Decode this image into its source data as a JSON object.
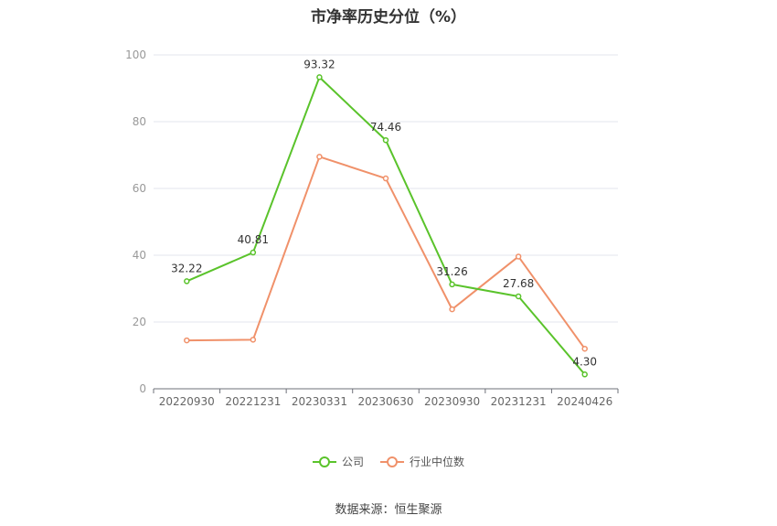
{
  "chart_data": {
    "type": "line",
    "title": "市净率历史分位（%）",
    "categories": [
      "20220930",
      "20221231",
      "20230331",
      "20230630",
      "20230930",
      "20231231",
      "20240426"
    ],
    "ylim": [
      0,
      100
    ],
    "yticks": [
      0,
      20,
      40,
      60,
      80,
      100
    ],
    "grid": true,
    "legend_position": "bottom",
    "series": [
      {
        "name": "公司",
        "color": "#5ac32b",
        "values": [
          32.22,
          40.81,
          93.32,
          74.46,
          31.26,
          27.68,
          4.3
        ],
        "labels": [
          "32.22",
          "40.81",
          "93.32",
          "74.46",
          "31.26",
          "27.68",
          "4.30"
        ]
      },
      {
        "name": "行业中位数",
        "color": "#f0916a",
        "values": [
          14.5,
          14.7,
          69.5,
          63.0,
          23.8,
          39.6,
          12.0
        ]
      }
    ]
  },
  "source_text": "数据来源：恒生聚源"
}
